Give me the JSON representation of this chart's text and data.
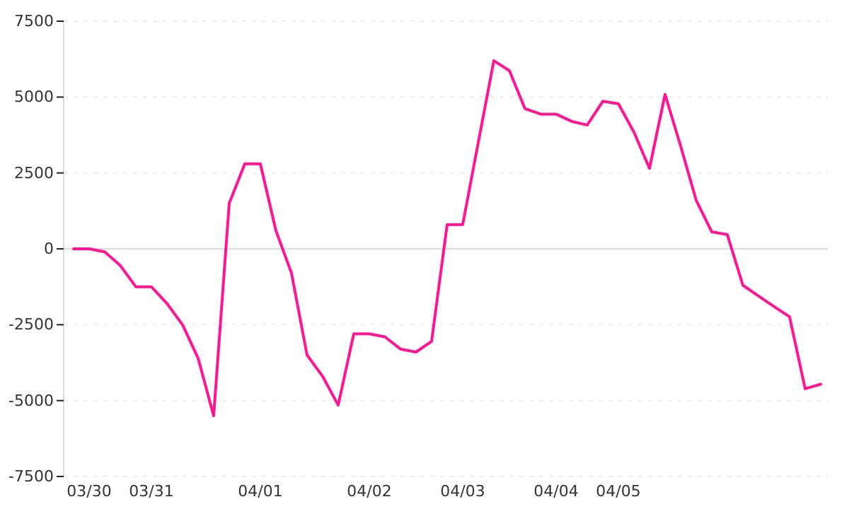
{
  "chart_data": {
    "type": "line",
    "categories": [
      null,
      "03/30",
      null,
      null,
      null,
      "03/31",
      null,
      null,
      null,
      null,
      null,
      null,
      "04/01",
      null,
      null,
      null,
      null,
      null,
      null,
      "04/02",
      null,
      null,
      null,
      null,
      null,
      "04/03",
      null,
      null,
      null,
      null,
      null,
      "04/04",
      null,
      null,
      null,
      "04/05",
      null,
      null,
      null,
      null,
      null,
      null,
      null,
      null,
      null,
      null,
      null,
      null,
      null
    ],
    "series": [
      {
        "color": "#ff1493",
        "values": [
          0,
          0,
          -100,
          -550,
          -1250,
          -1250,
          -1800,
          -2500,
          -3600,
          -5500,
          1500,
          2800,
          2800,
          600,
          -800,
          -3500,
          -4200,
          -5150,
          -2800,
          -2800,
          -2900,
          -3300,
          -3400,
          -3050,
          800,
          800,
          3500,
          6200,
          5870,
          4620,
          4440,
          4440,
          4200,
          4080,
          4860,
          4780,
          3850,
          2650,
          5090,
          3390,
          1600,
          560,
          470,
          -1200,
          -1550,
          -1900,
          -2240,
          -4610,
          -4460
        ]
      }
    ],
    "ylim": [
      -7500,
      7500
    ],
    "yticks": [
      -7500,
      -5000,
      -2500,
      0,
      2500,
      5000,
      7500
    ],
    "grid": "y",
    "marker": "none",
    "line_style": "solid"
  }
}
